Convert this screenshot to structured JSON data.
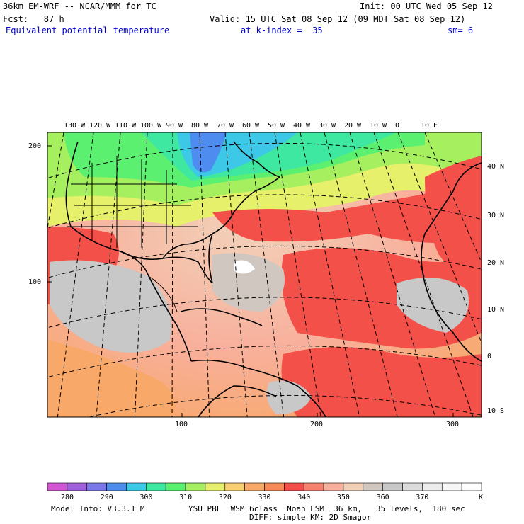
{
  "header": {
    "model_title": "36km EM-WRF -- NCAR/MMM for TC",
    "init": "Init: 00 UTC Wed 05 Sep 12",
    "fcst": "Fcst:   87 h",
    "valid": "Valid: 15 UTC Sat 08 Sep 12 (09 MDT Sat 08 Sep 12)",
    "field_name": "Equivalent potential temperature",
    "level": "at k-index =  35",
    "smoothing": "sm= 6"
  },
  "map": {
    "longitude_labels": [
      "130 W",
      "120 W",
      "110 W",
      "100 W",
      "90 W",
      "80 W",
      "70 W",
      "60 W",
      "50 W",
      "40 W",
      "30 W",
      "20 W",
      "10 W",
      "0",
      "10 E"
    ],
    "latitude_labels": [
      "40 N",
      "30 N",
      "20 N",
      "10 N",
      "0",
      "10 S"
    ],
    "grid_x_ticks": [
      "100",
      "200",
      "300"
    ],
    "grid_y_ticks": [
      "200",
      "100"
    ]
  },
  "colorbar": {
    "labels": [
      "280",
      "290",
      "300",
      "310",
      "320",
      "330",
      "340",
      "350",
      "360",
      "370"
    ],
    "unit": "K",
    "colors": [
      "#d455d4",
      "#a060e0",
      "#7a78ec",
      "#4f8cf0",
      "#3cc8e6",
      "#3ee8a0",
      "#5cf070",
      "#a6f060",
      "#e6f06a",
      "#f8d070",
      "#f8a868",
      "#f88858",
      "#f25048",
      "#f8806c",
      "#f8b09c",
      "#f2d0b8",
      "#d0c8c0",
      "#c8c8c8",
      "#dcdcdc",
      "#ececec",
      "#f6f6f6",
      "#ffffff"
    ]
  },
  "footer": {
    "model_info": "Model Info: V3.3.1 M",
    "physics": "YSU PBL  WSM 6class  Noah LSM  36 km,   35 levels,  180 sec",
    "diffusion": "DIFF: simple KM: 2D Smagor"
  }
}
